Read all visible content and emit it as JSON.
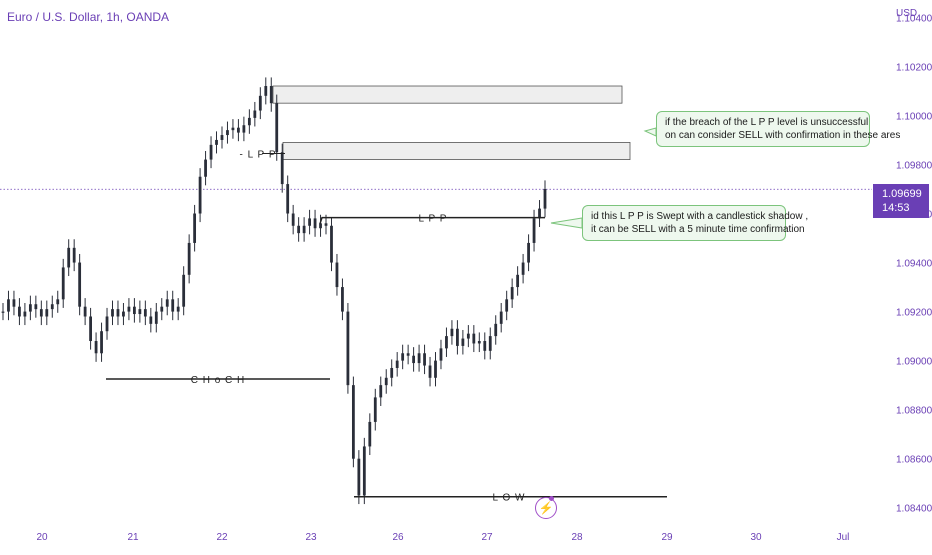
{
  "title": "Euro / U.S. Dollar, 1h, OANDA",
  "currency": "USD",
  "current_price": "1.09699",
  "countdown": "14:53",
  "callouts": {
    "top": [
      "if the breach of the L P P level is unsuccessful",
      "on can consider SELL with confirmation in these ares"
    ],
    "middle": [
      "id this L P P is Swept with a candlestick shadow ,",
      "it can be SELL with a 5 minute time confirmation"
    ]
  },
  "annotations": {
    "minus_lpp": "- L P P",
    "lpp": "L P P",
    "choch": "C H o C H",
    "low": "L O W"
  },
  "icons": {
    "bolt": "lightning-icon"
  },
  "colors": {
    "accent": "#6a3fb5",
    "candle": "#2a2e39",
    "zone_fill": "#eeeeee",
    "callout_border": "#7cc47c"
  },
  "chart_data": {
    "type": "candlestick",
    "symbol": "EURUSD",
    "timeframe": "1h",
    "x_ticks": [
      "20",
      "21",
      "22",
      "23",
      "26",
      "27",
      "28",
      "29",
      "30",
      "Jul"
    ],
    "y_ticks": [
      "1.08400",
      "1.08600",
      "1.08800",
      "1.09000",
      "1.09200",
      "1.09400",
      "1.09600",
      "1.09800",
      "1.10000",
      "1.10200",
      "1.10400"
    ],
    "ylim": [
      1.0835,
      1.1043
    ],
    "current_price": 1.09699,
    "price_path": [
      1.092,
      1.0925,
      1.0922,
      1.0918,
      1.092,
      1.0923,
      1.0921,
      1.0918,
      1.0921,
      1.0923,
      1.0925,
      1.0938,
      1.0946,
      1.094,
      1.0922,
      1.0918,
      1.0908,
      1.0903,
      1.0912,
      1.0918,
      1.0921,
      1.0918,
      1.092,
      1.0922,
      1.0919,
      1.0921,
      1.0918,
      1.0915,
      1.092,
      1.0922,
      1.0925,
      1.092,
      1.0922,
      1.0935,
      1.0948,
      1.096,
      1.0975,
      1.0982,
      1.0988,
      1.099,
      1.0992,
      1.0994,
      1.0995,
      1.0993,
      1.0996,
      1.0999,
      1.1002,
      1.1008,
      1.1012,
      1.1005,
      1.0985,
      1.0972,
      1.096,
      1.0955,
      1.0952,
      1.0955,
      1.0958,
      1.0954,
      1.0956,
      1.0955,
      1.094,
      1.093,
      1.092,
      1.089,
      1.086,
      1.0845,
      1.0865,
      1.0875,
      1.0885,
      1.089,
      1.0893,
      1.0897,
      1.09,
      1.0903,
      1.0902,
      1.0899,
      1.0903,
      1.0898,
      1.0893,
      1.09,
      1.0905,
      1.091,
      1.0913,
      1.0906,
      1.0909,
      1.0911,
      1.0907,
      1.0908,
      1.0904,
      1.091,
      1.0915,
      1.092,
      1.0925,
      1.093,
      1.0935,
      1.094,
      1.0948,
      1.0958,
      1.0962,
      1.097
    ],
    "levels": [
      {
        "name": "L P P",
        "price": 1.09583
      },
      {
        "name": "- L P P",
        "price": 1.09845
      },
      {
        "name": "C H o C H",
        "price": 1.08925
      },
      {
        "name": "L O W",
        "price": 1.08445
      }
    ],
    "zones": [
      {
        "from": 1.1005,
        "to": 1.1012
      },
      {
        "from": 1.0982,
        "to": 1.0989
      }
    ]
  }
}
